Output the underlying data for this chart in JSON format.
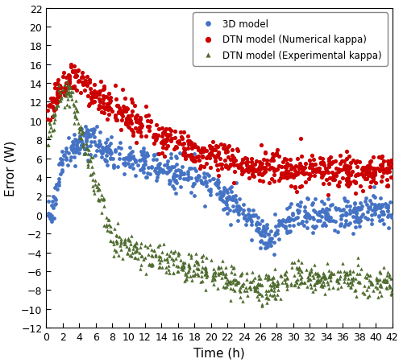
{
  "xlabel": "Time (h)",
  "ylabel": "Error (W)",
  "xlim": [
    0,
    42
  ],
  "ylim": [
    -12,
    22
  ],
  "xticks": [
    0,
    2,
    4,
    6,
    8,
    10,
    12,
    14,
    16,
    18,
    20,
    22,
    24,
    26,
    28,
    30,
    32,
    34,
    36,
    38,
    40,
    42
  ],
  "yticks": [
    -12,
    -10,
    -8,
    -6,
    -4,
    -2,
    0,
    2,
    4,
    6,
    8,
    10,
    12,
    14,
    16,
    18,
    20,
    22
  ],
  "legend_labels": [
    "3D model",
    "DTN model (Numerical kappa)",
    "DTN model (Experimental kappa)"
  ],
  "colors": [
    "#4472C4",
    "#CC0000",
    "#4E6B2E"
  ],
  "marker_sizes_scatter": [
    12,
    14,
    10
  ],
  "seed": 42,
  "figsize": [
    5.0,
    4.52
  ],
  "dpi": 100
}
